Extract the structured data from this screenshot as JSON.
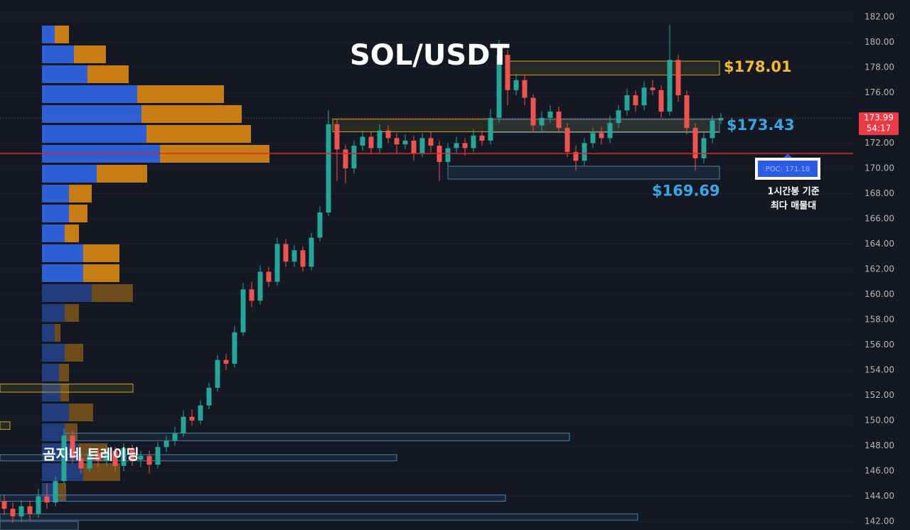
{
  "chart_data": {
    "type": "candlestick",
    "title": "SOL/USDT",
    "up_color": "#26a69a",
    "down_color": "#ef5350",
    "ylim": [
      141.32,
      183.35
    ],
    "yticks": [
      {
        "value": 142,
        "label": "142.00"
      },
      {
        "value": 144,
        "label": "144.00"
      },
      {
        "value": 146,
        "label": "146.00"
      },
      {
        "value": 148,
        "label": "148.00"
      },
      {
        "value": 150,
        "label": "150.00"
      },
      {
        "value": 152,
        "label": "152.00"
      },
      {
        "value": 154,
        "label": "154.00"
      },
      {
        "value": 156,
        "label": "156.00"
      },
      {
        "value": 158,
        "label": "158.00"
      },
      {
        "value": 160,
        "label": "160.00"
      },
      {
        "value": 162,
        "label": "162.00"
      },
      {
        "value": 164,
        "label": "164.00"
      },
      {
        "value": 166,
        "label": "166.00"
      },
      {
        "value": 168,
        "label": "168.00"
      },
      {
        "value": 170,
        "label": "170.00"
      },
      {
        "value": 172,
        "label": "172.00"
      },
      {
        "value": 174,
        "label": "174.00"
      },
      {
        "value": 176,
        "label": "176.00"
      },
      {
        "value": 178,
        "label": "178.00"
      },
      {
        "value": 180,
        "label": "180.00"
      },
      {
        "value": 182,
        "label": "182.00"
      }
    ],
    "open": [
      143.6,
      143.0,
      142.4,
      143.2,
      142.6,
      144.0,
      143.5,
      145.2,
      148.8,
      147.0,
      146.2,
      147.4,
      146.8,
      147.6,
      146.4,
      147.8,
      146.9,
      147.2,
      146.5,
      147.9,
      148.4,
      149.0,
      150.3,
      150.0,
      151.2,
      152.6,
      154.8,
      154.5,
      157.0,
      160.4,
      159.5,
      161.8,
      161.0,
      164.0,
      162.6,
      163.5,
      162.2,
      164.5,
      166.5,
      173.5,
      171.5,
      170.0,
      171.8,
      172.5,
      171.6,
      173.0,
      172.4,
      171.9,
      172.2,
      171.2,
      172.4,
      171.8,
      170.5,
      171.6,
      172.0,
      171.6,
      172.6,
      172.2,
      174.0,
      179.0,
      176.2,
      177.0,
      175.6,
      173.4,
      174.0,
      174.5,
      173.2,
      171.3,
      170.6,
      172.0,
      172.8,
      172.4,
      173.6,
      174.6,
      175.8,
      175.0,
      176.4,
      176.2,
      174.5,
      178.6,
      175.8,
      173.2,
      170.8,
      172.4,
      173.8
    ],
    "high": [
      144.1,
      143.5,
      143.7,
      143.6,
      144.6,
      145.0,
      145.6,
      149.4,
      149.2,
      147.4,
      147.9,
      147.8,
      148.0,
      147.9,
      148.2,
      148.1,
      147.6,
      147.6,
      148.3,
      148.8,
      149.5,
      150.8,
      150.9,
      151.6,
      153.0,
      155.2,
      155.3,
      157.5,
      160.9,
      161.0,
      162.3,
      162.2,
      164.5,
      164.4,
      163.9,
      163.8,
      164.9,
      167.0,
      174.6,
      173.9,
      171.9,
      172.2,
      173.0,
      172.9,
      173.5,
      173.4,
      172.8,
      172.7,
      172.6,
      172.8,
      172.9,
      172.2,
      172.0,
      172.5,
      172.4,
      173.1,
      173.0,
      174.7,
      180.2,
      179.4,
      177.5,
      177.4,
      175.9,
      174.5,
      175.0,
      174.9,
      173.6,
      171.8,
      172.4,
      173.2,
      173.3,
      174.2,
      175.0,
      176.3,
      176.2,
      176.9,
      177.0,
      176.6,
      181.4,
      179.0,
      176.2,
      173.6,
      172.8,
      174.2,
      174.4
    ],
    "low": [
      142.5,
      141.9,
      142.0,
      142.1,
      142.3,
      143.0,
      143.2,
      145.0,
      146.6,
      145.8,
      145.9,
      146.3,
      146.4,
      145.9,
      146.0,
      146.4,
      146.3,
      145.8,
      146.2,
      147.5,
      148.0,
      148.7,
      149.6,
      149.7,
      150.9,
      152.3,
      154.0,
      154.2,
      156.7,
      159.0,
      159.2,
      160.6,
      160.7,
      162.2,
      162.2,
      161.8,
      161.9,
      164.2,
      166.2,
      169.0,
      168.8,
      169.6,
      171.4,
      171.1,
      171.2,
      172.0,
      171.2,
      171.5,
      170.6,
      170.9,
      171.3,
      169.0,
      170.1,
      171.2,
      171.0,
      171.3,
      171.8,
      171.9,
      173.6,
      175.0,
      175.8,
      175.0,
      172.9,
      172.8,
      173.6,
      172.8,
      170.9,
      169.8,
      170.2,
      171.6,
      171.9,
      172.0,
      173.2,
      174.2,
      174.5,
      174.6,
      175.8,
      174.0,
      174.2,
      175.3,
      172.7,
      169.8,
      170.4,
      172.0,
      173.5
    ],
    "close": [
      143.0,
      142.4,
      143.2,
      142.6,
      144.0,
      143.5,
      145.2,
      148.8,
      147.0,
      146.2,
      147.4,
      146.8,
      147.6,
      146.4,
      147.8,
      146.9,
      147.2,
      146.5,
      147.9,
      148.4,
      149.0,
      150.3,
      150.0,
      151.2,
      152.6,
      154.8,
      154.5,
      157.0,
      160.4,
      159.5,
      161.8,
      161.0,
      164.0,
      162.6,
      163.5,
      162.2,
      164.5,
      166.5,
      173.5,
      171.5,
      170.0,
      171.8,
      172.5,
      171.6,
      173.0,
      172.4,
      171.9,
      172.2,
      171.2,
      172.4,
      171.8,
      170.5,
      171.6,
      172.0,
      171.6,
      172.6,
      172.2,
      174.0,
      179.0,
      176.2,
      177.0,
      175.6,
      173.4,
      174.0,
      174.5,
      173.2,
      171.3,
      170.6,
      172.0,
      172.8,
      172.4,
      173.6,
      174.6,
      175.8,
      175.0,
      176.4,
      176.2,
      174.5,
      178.6,
      175.8,
      173.2,
      170.8,
      172.4,
      173.8,
      173.99
    ],
    "profile": {
      "buy": [
        18,
        45,
        64,
        134,
        140,
        147,
        166,
        77,
        38,
        38,
        32,
        58,
        58,
        70,
        32,
        18,
        32,
        24,
        26,
        38,
        32,
        52,
        58,
        20
      ],
      "sell": [
        20,
        45,
        58,
        122,
        141,
        147,
        154,
        71,
        32,
        26,
        20,
        51,
        51,
        58,
        20,
        8,
        26,
        14,
        12,
        34,
        18,
        40,
        52,
        14
      ],
      "buy_color": "#2f5fd6",
      "sell_color": "#c77d14"
    },
    "zones": [
      {
        "range": [
          178.5,
          177.4
        ],
        "color": "#c9a227"
      },
      {
        "range": [
          173.9,
          172.9
        ],
        "color": "#c9a227"
      },
      {
        "range": [
          173.9,
          172.85
        ],
        "color": "#4a7fb0"
      },
      {
        "range": [
          170.17,
          169.15
        ],
        "color": "#4a7fb0"
      },
      {
        "range": [
          152.9,
          152.25
        ],
        "color": "#c9a227"
      },
      {
        "range": [
          149.9,
          149.3
        ],
        "color": "#c9a227"
      },
      {
        "range": [
          149.0,
          148.4
        ],
        "color": "#4a7fb0"
      },
      {
        "range": [
          147.3,
          146.8
        ],
        "color": "#4a7fb0"
      },
      {
        "range": [
          144.1,
          143.6
        ],
        "color": "#4a7fb0"
      },
      {
        "range": [
          142.6,
          142.1
        ],
        "color": "#4a7fb0"
      },
      {
        "range": [
          142.0,
          141.32
        ],
        "color": "#4a7fb0"
      }
    ],
    "poc": 171.18,
    "poc_label": "POC: 171.18",
    "poc_color": "#e0262b",
    "last_price": {
      "value": 173.99,
      "label": "173.99"
    },
    "countdown": "54:17",
    "levels": [
      {
        "value": 178.01,
        "label": "$178.01",
        "color": "#f5b82e"
      },
      {
        "value": 173.43,
        "label": "$173.43",
        "color": "#3ba6e6"
      },
      {
        "value": 169.69,
        "label": "$169.69",
        "color": "#3ba6e6"
      }
    ],
    "note": [
      "1시간봉 기준",
      "최다 매물대"
    ],
    "brand": "곰지네 트레이딩"
  }
}
